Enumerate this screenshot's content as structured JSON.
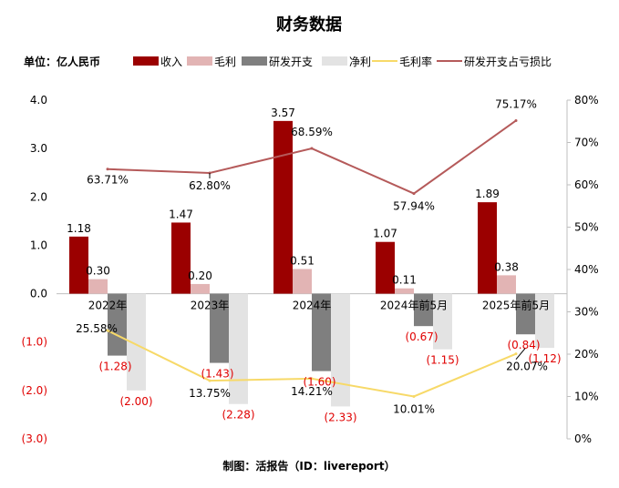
{
  "chart_data": {
    "type": "bar+line",
    "title": "财务数据",
    "unit_label": "单位：亿人民币",
    "footer": "制图：活报告（ID：livereport）",
    "categories": [
      "2022年",
      "2023年",
      "2024年",
      "2024年前5月",
      "2025年前5月"
    ],
    "series": [
      {
        "name": "收入",
        "kind": "bar",
        "axis": "left",
        "color": "#9b0000",
        "values": [
          1.18,
          1.47,
          3.57,
          1.07,
          1.89
        ],
        "labels": [
          "1.18",
          "1.47",
          "3.57",
          "1.07",
          "1.89"
        ]
      },
      {
        "name": "毛利",
        "kind": "bar",
        "axis": "left",
        "color": "#e2b4b4",
        "values": [
          0.3,
          0.2,
          0.51,
          0.11,
          0.38
        ],
        "labels": [
          "0.30",
          "0.20",
          "0.51",
          "0.11",
          "0.38"
        ]
      },
      {
        "name": "研发开支",
        "kind": "bar",
        "axis": "left",
        "color": "#7f7f7f",
        "values": [
          -1.28,
          -1.43,
          -1.6,
          -0.67,
          -0.84
        ],
        "labels": [
          "(1.28)",
          "(1.43)",
          "(1.60)",
          "(0.67)",
          "(0.84)"
        ]
      },
      {
        "name": "净利",
        "kind": "bar",
        "axis": "left",
        "color": "#e3e3e3",
        "values": [
          -2.0,
          -2.28,
          -2.33,
          -1.15,
          -1.12
        ],
        "labels": [
          "(2.00)",
          "(2.28)",
          "(2.33)",
          "(1.15)",
          "(1.12)"
        ]
      },
      {
        "name": "毛利率",
        "kind": "line",
        "axis": "right",
        "color": "#f7d968",
        "values": [
          25.58,
          13.75,
          14.21,
          10.01,
          20.07
        ],
        "labels": [
          "25.58%",
          "13.75%",
          "14.21%",
          "10.01%",
          "20.07%"
        ]
      },
      {
        "name": "研发开支占亏损比",
        "kind": "line",
        "axis": "right",
        "color": "#b55a5a",
        "values": [
          63.71,
          62.8,
          68.59,
          57.94,
          75.17
        ],
        "labels": [
          "63.71%",
          "62.80%",
          "68.59%",
          "57.94%",
          "75.17%"
        ]
      }
    ],
    "left_axis": {
      "min": -3,
      "max": 4,
      "ticks": [
        4,
        3,
        2,
        1,
        0,
        -1,
        -2,
        -3
      ],
      "tick_labels": [
        "4.0",
        "3.0",
        "2.0",
        "1.0",
        "0.0",
        "(1.0)",
        "(2.0)",
        "(3.0)"
      ]
    },
    "right_axis": {
      "min": 0,
      "max": 80,
      "ticks": [
        80,
        70,
        60,
        50,
        40,
        30,
        20,
        10,
        0
      ],
      "tick_labels": [
        "80%",
        "70%",
        "60%",
        "50%",
        "40%",
        "30%",
        "20%",
        "10%",
        "0%"
      ]
    },
    "colors": {
      "negative_text": "#e00000",
      "text": "#000000",
      "axis": "#bfbfbf"
    }
  }
}
